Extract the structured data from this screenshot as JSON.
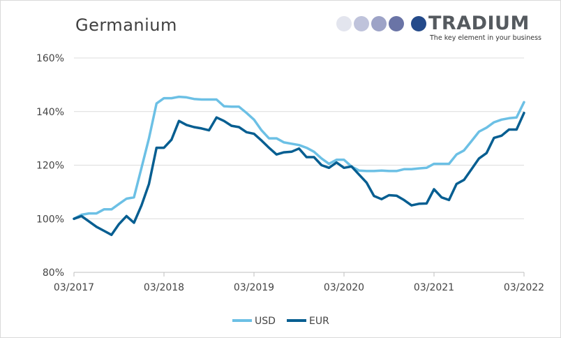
{
  "chart_data": {
    "type": "line",
    "title": "Germanium",
    "xlabel": "",
    "ylabel": "",
    "ylim": [
      80,
      160
    ],
    "yticks": [
      "80%",
      "100%",
      "120%",
      "140%",
      "160%"
    ],
    "ytick_values": [
      80,
      100,
      120,
      140,
      160
    ],
    "xticks": [
      "03/2017",
      "03/2018",
      "03/2019",
      "03/2020",
      "03/2021",
      "03/2022"
    ],
    "x_months": [
      "03/2017",
      "04/2017",
      "05/2017",
      "06/2017",
      "07/2017",
      "08/2017",
      "09/2017",
      "10/2017",
      "11/2017",
      "12/2017",
      "01/2018",
      "02/2018",
      "03/2018",
      "04/2018",
      "05/2018",
      "06/2018",
      "07/2018",
      "08/2018",
      "09/2018",
      "10/2018",
      "11/2018",
      "12/2018",
      "01/2019",
      "02/2019",
      "03/2019",
      "04/2019",
      "05/2019",
      "06/2019",
      "07/2019",
      "08/2019",
      "09/2019",
      "10/2019",
      "11/2019",
      "12/2019",
      "01/2020",
      "02/2020",
      "03/2020",
      "04/2020",
      "05/2020",
      "06/2020",
      "07/2020",
      "08/2020",
      "09/2020",
      "10/2020",
      "11/2020",
      "12/2020",
      "01/2021",
      "02/2021",
      "03/2021",
      "04/2021",
      "05/2021",
      "06/2021",
      "07/2021",
      "08/2021",
      "09/2021",
      "10/2021",
      "11/2021",
      "12/2021",
      "01/2022",
      "02/2022",
      "03/2022"
    ],
    "series": [
      {
        "name": "USD",
        "color": "#6cc0e5",
        "values": [
          100,
          101.5,
          102,
          102,
          103.5,
          103.5,
          105.5,
          107.5,
          108,
          119,
          130,
          143,
          145,
          145,
          145.5,
          145.3,
          144.7,
          144.5,
          144.5,
          144.5,
          142,
          141.8,
          141.8,
          139.5,
          137,
          133,
          130,
          130,
          128.5,
          128,
          127.5,
          126.5,
          125,
          122.5,
          120.5,
          122,
          122,
          119.5,
          118,
          117.8,
          117.8,
          118,
          117.8,
          117.8,
          118.5,
          118.5,
          118.8,
          119,
          120.5,
          120.5,
          120.5,
          124,
          125.5,
          129,
          132.5,
          134,
          136,
          137,
          137.5,
          137.8,
          143.5
        ]
      },
      {
        "name": "EUR",
        "color": "#065e91",
        "values": [
          100,
          101,
          99,
          97,
          95.5,
          94,
          98,
          101,
          98.5,
          105,
          113,
          126.5,
          126.5,
          129.5,
          136.5,
          135,
          134.2,
          133.7,
          133,
          137.8,
          136.5,
          134.7,
          134.2,
          132.3,
          131.7,
          129.2,
          126.5,
          124,
          124.8,
          125,
          126.2,
          123,
          123,
          120,
          119,
          121,
          119,
          119.5,
          116.5,
          113.5,
          108.5,
          107.3,
          108.8,
          108.6,
          107,
          105,
          105.6,
          105.7,
          111,
          108,
          107,
          113,
          114.5,
          118.5,
          122.5,
          124.5,
          130.2,
          131,
          133.3,
          133.3,
          139.5
        ]
      }
    ],
    "legend": "bottom-center"
  },
  "logo": {
    "brand": "TRADIUM",
    "tagline": "The key element in your business",
    "dot_colors": [
      "#e3e5ee",
      "#bfc3db",
      "#9da3c7",
      "#6a74a6",
      "#244a8a"
    ]
  },
  "colors": {
    "grid": "#dcdcdc",
    "axis": "#bfbfbf",
    "text": "#404040"
  }
}
